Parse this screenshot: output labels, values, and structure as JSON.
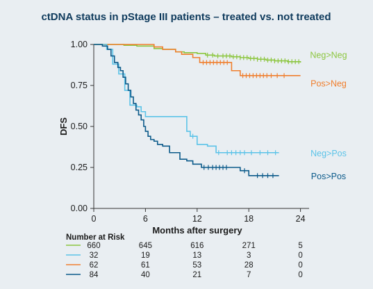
{
  "chart_data": {
    "type": "line",
    "title": "ctDNA status in pStage III patients – treated vs. not treated",
    "xlabel": "Months after surgery",
    "ylabel": "DFS",
    "xlim": [
      0,
      25
    ],
    "ylim": [
      0,
      1
    ],
    "x_ticks": [
      "0",
      "6",
      "12",
      "18",
      "24"
    ],
    "x_tick_values": [
      0,
      6,
      12,
      18,
      24
    ],
    "y_ticks": [
      "0.00",
      "0.25",
      "0.50",
      "0.75",
      "1.00"
    ],
    "y_tick_values": [
      0,
      0.25,
      0.5,
      0.75,
      1.0
    ],
    "grid": false,
    "series": [
      {
        "name": "Neg>Neg",
        "color": "#8cc63f",
        "x": [
          0,
          2,
          3.5,
          5,
          7,
          8,
          9.5,
          10.5,
          12,
          13,
          14,
          15,
          16,
          17,
          18,
          19,
          20,
          21,
          22.5,
          24
        ],
        "y": [
          1.0,
          1.0,
          0.995,
          0.99,
          0.975,
          0.97,
          0.955,
          0.95,
          0.945,
          0.935,
          0.93,
          0.93,
          0.925,
          0.92,
          0.915,
          0.91,
          0.905,
          0.9,
          0.895,
          0.89
        ],
        "censor_x": [
          13.2,
          13.8,
          14.4,
          15.0,
          15.4,
          15.8,
          16.2,
          16.6,
          17.0,
          17.4,
          17.8,
          18.2,
          18.6,
          19.0,
          19.4,
          19.8,
          20.2,
          20.6,
          21.0,
          21.4,
          21.8,
          22.2,
          22.6,
          23.0,
          23.4,
          23.8
        ]
      },
      {
        "name": "Pos>Neg",
        "color": "#f07f2e",
        "x": [
          0,
          5,
          7,
          8,
          9.5,
          10.2,
          11.5,
          12.3,
          16,
          17,
          20.5,
          24
        ],
        "y": [
          1.0,
          1.0,
          0.985,
          0.97,
          0.955,
          0.94,
          0.92,
          0.89,
          0.84,
          0.81,
          0.81,
          0.81
        ],
        "censor_x": [
          12.7,
          13.1,
          13.5,
          13.9,
          14.3,
          14.7,
          15.1,
          15.5,
          17.3,
          17.7,
          18.1,
          18.5,
          18.9,
          19.3,
          19.7,
          20.1,
          20.6,
          21.3,
          22.1
        ]
      },
      {
        "name": "Neg>Pos",
        "color": "#5bc3e8",
        "x": [
          0,
          1.5,
          2.2,
          2.9,
          3.6,
          4.2,
          5.0,
          5.5,
          6.0,
          7.5,
          10.8,
          11.2,
          12.0,
          13.2,
          14.2,
          21.5
        ],
        "y": [
          1.0,
          0.97,
          0.88,
          0.82,
          0.72,
          0.63,
          0.62,
          0.59,
          0.56,
          0.56,
          0.47,
          0.44,
          0.39,
          0.38,
          0.34,
          0.34
        ],
        "censor_x": [
          11.5,
          14.5,
          15.5,
          16.0,
          16.5,
          17.0,
          17.5,
          18.3,
          19.3,
          20.2,
          21.1
        ]
      },
      {
        "name": "Pos>Pos",
        "color": "#0b5a8a",
        "x": [
          0,
          1.0,
          1.6,
          2.0,
          2.4,
          2.8,
          3.1,
          3.4,
          3.7,
          4.0,
          4.3,
          4.6,
          4.9,
          5.2,
          5.5,
          5.8,
          6.0,
          6.3,
          6.6,
          7.0,
          7.4,
          8.0,
          8.8,
          10.0,
          10.8,
          11.5,
          12.5,
          17.0,
          18.0,
          21.5
        ],
        "y": [
          1.0,
          0.99,
          0.97,
          0.93,
          0.89,
          0.86,
          0.84,
          0.8,
          0.76,
          0.72,
          0.68,
          0.64,
          0.6,
          0.57,
          0.54,
          0.5,
          0.47,
          0.44,
          0.42,
          0.41,
          0.39,
          0.38,
          0.34,
          0.3,
          0.29,
          0.27,
          0.25,
          0.23,
          0.2,
          0.2
        ],
        "censor_x": [
          12.8,
          13.3,
          13.8,
          14.2,
          14.6,
          15.0,
          15.4,
          17.5,
          19.0,
          19.6,
          20.2,
          20.8
        ]
      }
    ],
    "end_labels": [
      {
        "series": "Neg>Neg",
        "text": "Neg>Neg",
        "y_anchor": 0.935
      },
      {
        "series": "Pos>Neg",
        "text": "Pos>Neg",
        "y_anchor": 0.76
      },
      {
        "series": "Neg>Pos",
        "text": "Neg>Pos",
        "y_anchor": 0.335
      },
      {
        "series": "Pos>Pos",
        "text": "Pos>Pos",
        "y_anchor": 0.195
      }
    ],
    "risk_table": {
      "title": "Number at Risk",
      "times": [
        0,
        6,
        12,
        18,
        24
      ],
      "rows": [
        {
          "series": "Neg>Neg",
          "color": "#8cc63f",
          "values": [
            "660",
            "645",
            "616",
            "271",
            "5"
          ]
        },
        {
          "series": "Neg>Pos",
          "color": "#5bc3e8",
          "values": [
            "32",
            "19",
            "13",
            "3",
            "0"
          ]
        },
        {
          "series": "Pos>Neg",
          "color": "#f07f2e",
          "values": [
            "62",
            "61",
            "53",
            "28",
            "0"
          ]
        },
        {
          "series": "Pos>Pos",
          "color": "#0b5a8a",
          "values": [
            "84",
            "40",
            "21",
            "7",
            "0"
          ]
        }
      ]
    }
  }
}
